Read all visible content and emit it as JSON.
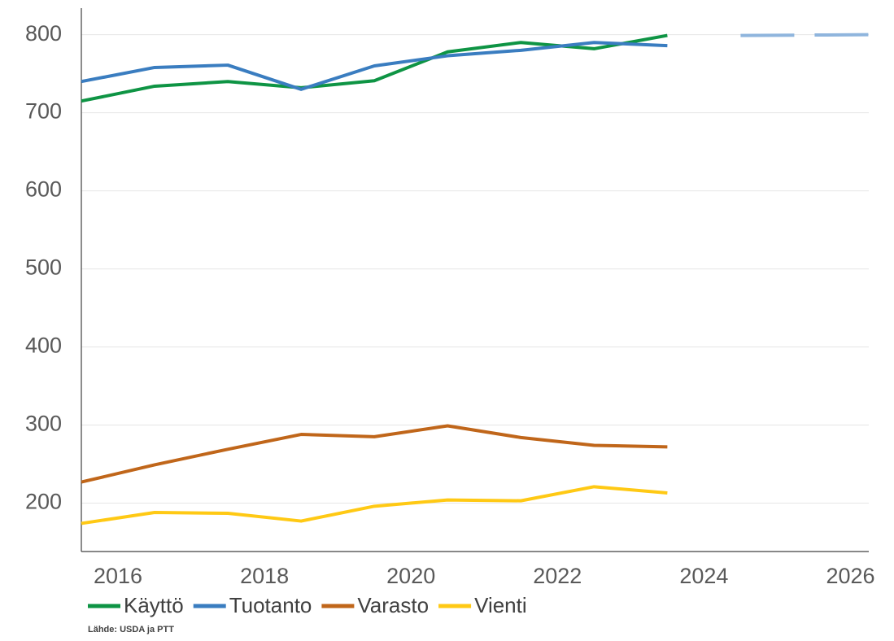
{
  "chart_data": {
    "type": "line",
    "x": [
      2015.5,
      2016.5,
      2017.5,
      2018.5,
      2019.5,
      2020.5,
      2021.5,
      2022.5,
      2023.5
    ],
    "series": [
      {
        "name": "Käyttö",
        "color": "#0e9444",
        "values": [
          715,
          734,
          740,
          732,
          741,
          778,
          790,
          782,
          799
        ]
      },
      {
        "name": "Tuotanto",
        "color": "#3a7dc0",
        "values": [
          740,
          758,
          761,
          730,
          760,
          773,
          780,
          790,
          786
        ]
      },
      {
        "name": "Varasto",
        "color": "#c0661a",
        "values": [
          227,
          249,
          269,
          288,
          285,
          299,
          284,
          274,
          272
        ]
      },
      {
        "name": "Vienti",
        "color": "#ffc914",
        "values": [
          174,
          188,
          187,
          177,
          196,
          204,
          203,
          221,
          213
        ]
      },
      {
        "color": "#8fb5dd",
        "dashed": true,
        "x": [
          2024.5,
          2026.25
        ],
        "values": [
          799,
          800
        ]
      }
    ],
    "xlim": [
      2015.5,
      2026.25
    ],
    "xticks": [
      2016,
      2018,
      2020,
      2022,
      2024,
      2026
    ],
    "ylim": [
      138,
      834
    ],
    "yticks": [
      200,
      300,
      400,
      500,
      600,
      700,
      800
    ],
    "grid": true,
    "legend": "bottom-left",
    "source": "Lähde: USDA ja PTT"
  }
}
